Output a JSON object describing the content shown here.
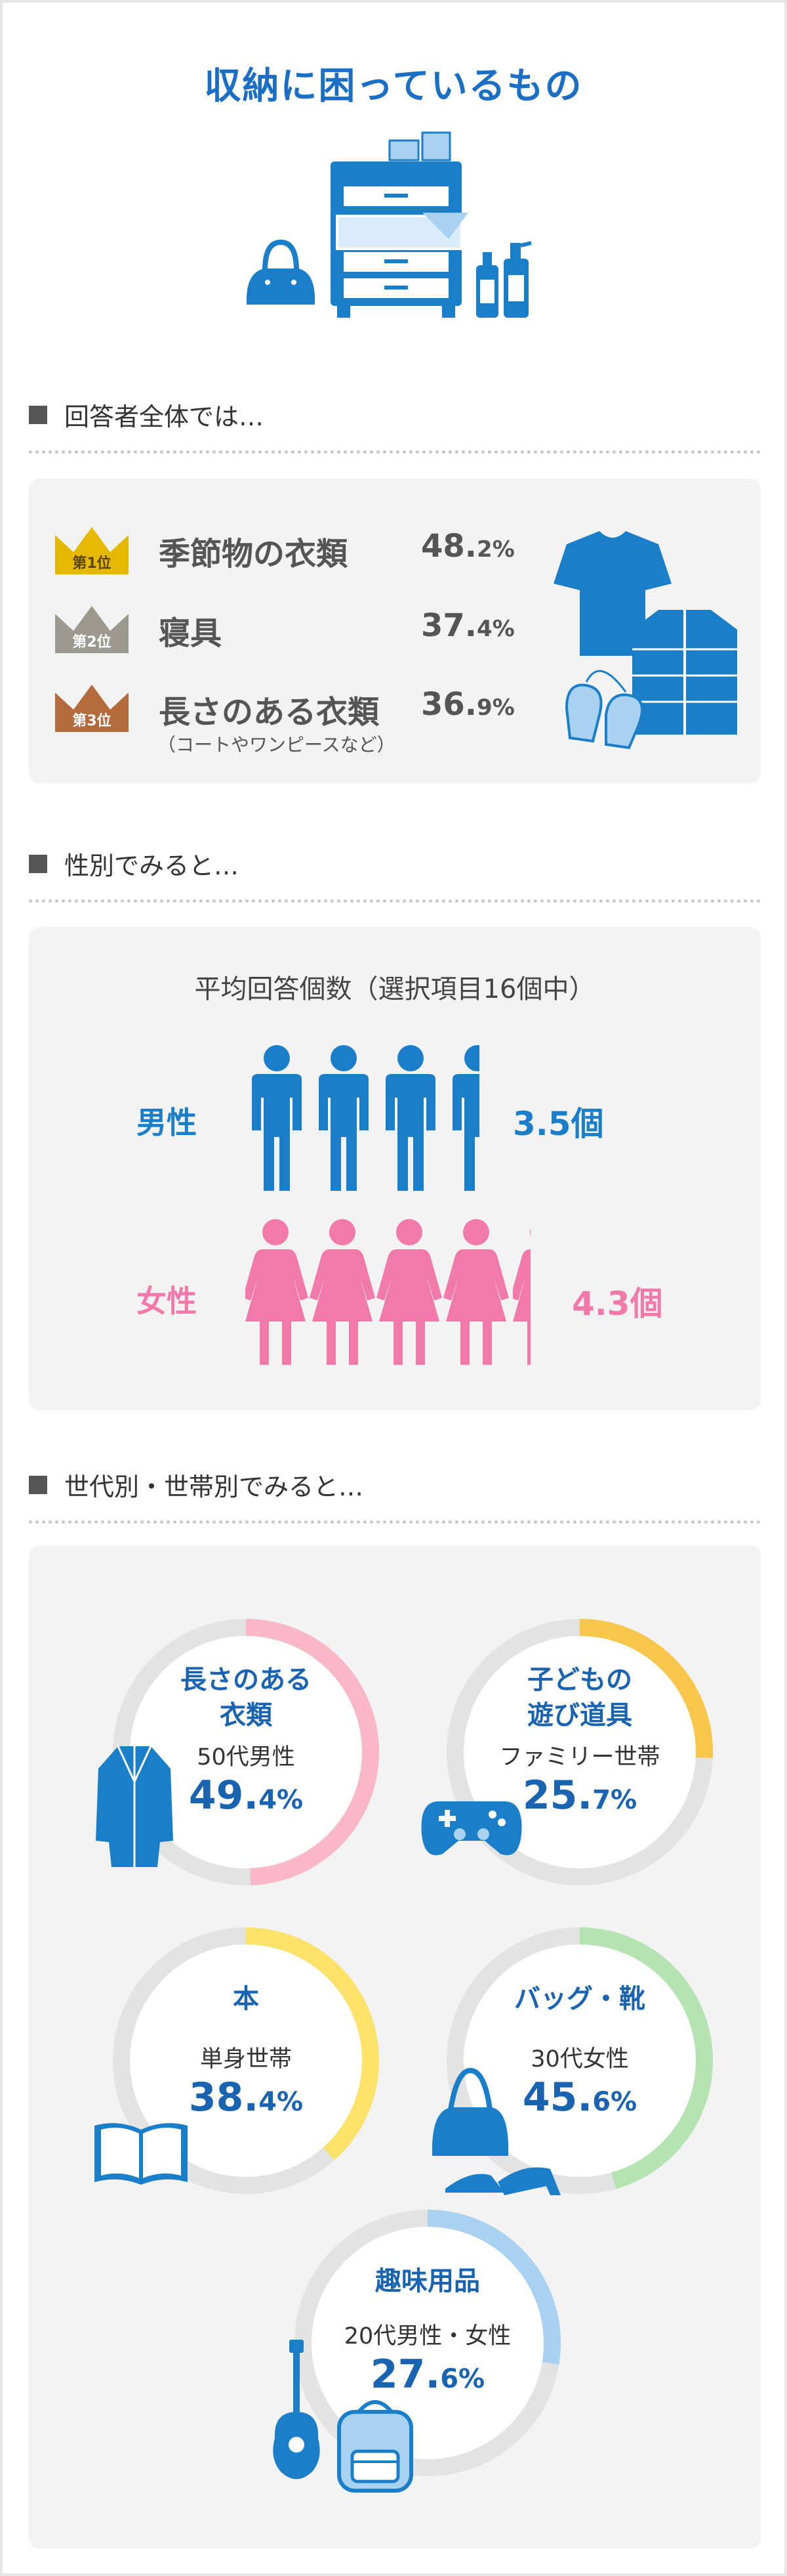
{
  "title": "収納に困っているもの",
  "sections": {
    "overall": "回答者全体では…",
    "gender": "性別でみると…",
    "generation": "世代別・世帯別でみると…"
  },
  "ranking": [
    {
      "badge": "第1位",
      "label": "季節物の衣類",
      "int": "48.",
      "dec": "2%",
      "note": ""
    },
    {
      "badge": "第2位",
      "label": "寝具",
      "int": "37.",
      "dec": "4%",
      "note": ""
    },
    {
      "badge": "第3位",
      "label": "長さのある衣類",
      "int": "36.",
      "dec": "9%",
      "note": "（コートやワンピースなど）"
    }
  ],
  "gender_panel": {
    "title": "平均回答個数（選択項目16個中）",
    "male": {
      "label": "男性",
      "value": "3.5個",
      "count": 3.5,
      "color": "#1a7fc8"
    },
    "female": {
      "label": "女性",
      "value": "4.3個",
      "count": 4.3,
      "color": "#f27aa8"
    }
  },
  "donuts": [
    {
      "item1": "長さのある",
      "item2": "衣類",
      "segment": "50代男性",
      "int": "49.",
      "dec": "4%",
      "percent": 49.4,
      "color": "#f9b8c6",
      "icon": "coat-icon"
    },
    {
      "item1": "子どもの",
      "item2": "遊び道具",
      "segment": "ファミリー世帯",
      "int": "25.",
      "dec": "7%",
      "percent": 25.7,
      "color": "#f8c64a",
      "icon": "game-controller-icon"
    },
    {
      "item1": "本",
      "item2": "",
      "segment": "単身世帯",
      "int": "38.",
      "dec": "4%",
      "percent": 38.4,
      "color": "#fbe26a",
      "icon": "book-icon"
    },
    {
      "item1": "バッグ・靴",
      "item2": "",
      "segment": "30代女性",
      "int": "45.",
      "dec": "6%",
      "percent": 45.6,
      "color": "#b6e3b2",
      "icon": "bag-shoes-icon"
    },
    {
      "item1": "趣味用品",
      "item2": "",
      "segment": "20代男性・女性",
      "int": "27.",
      "dec": "6%",
      "percent": 27.6,
      "color": "#a9d1f0",
      "icon": "guitar-backpack-icon"
    }
  ],
  "colors": {
    "accent": "#1a6fc4",
    "icon_blue": "#1a7fc8",
    "gold": "#e5b800",
    "silver": "#9a9a8e",
    "bronze": "#b36a3c"
  }
}
